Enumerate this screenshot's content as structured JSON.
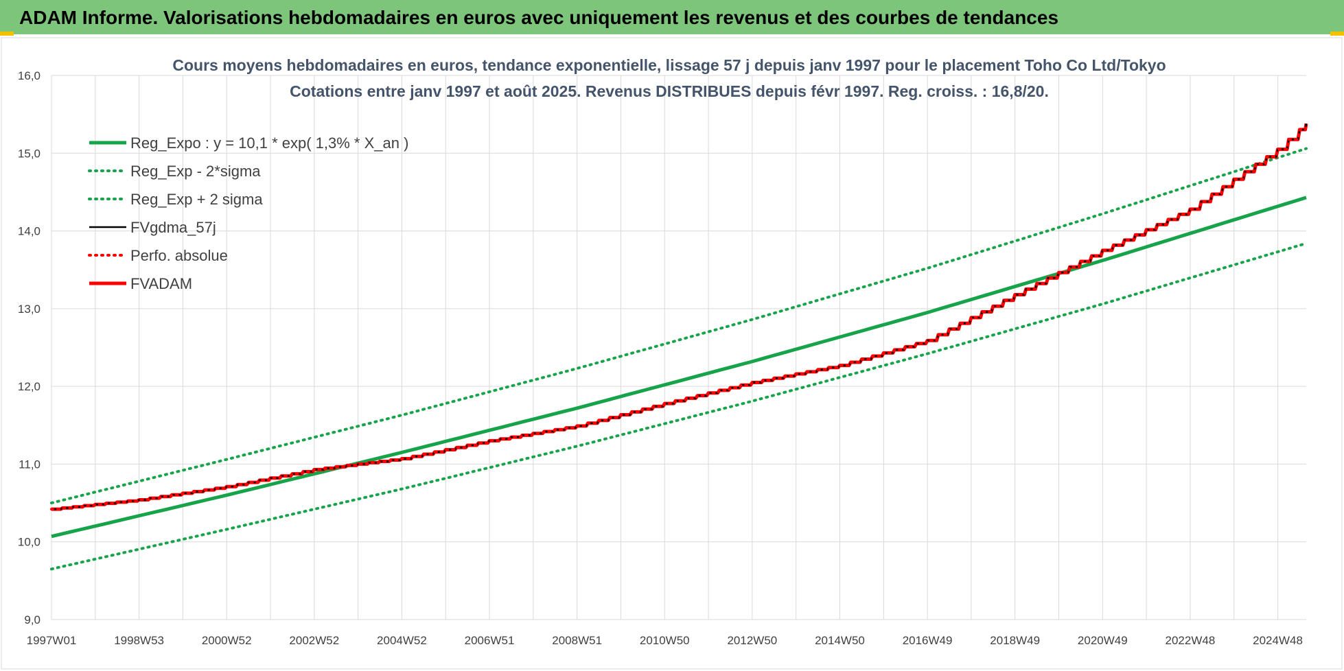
{
  "banner": {
    "title": "ADAM Informe. Valorisations hebdomadaires en euros avec uniquement les revenus et des courbes de tendances"
  },
  "colors": {
    "banner_bg": "#7dc57a",
    "banner_accent": "#f2c200",
    "trend_green": "#16a34a",
    "fv_black": "#000000",
    "fvadam_red": "#ff0000",
    "grid": "#d9d9d9",
    "tick_text": "#404040",
    "title_text": "#44546a"
  },
  "chart_data": {
    "type": "line",
    "title_line1": "Cours moyens hebdomadaires en euros, tendance exponentielle, lissage 57 j depuis janv 1997 pour le placement Toho Co Ltd/Tokyo",
    "title_line2": "Cotations entre janv 1997 et août 2025.  Revenus DISTRIBUES depuis févr 1997.  Reg. croiss. : 16,8/20.",
    "x_start": 1997.0,
    "x_end": 2025.65,
    "x_ticks": [
      {
        "label": "1997W01",
        "x": 1997.0
      },
      {
        "label": "1998W53",
        "x": 1999.0
      },
      {
        "label": "2000W52",
        "x": 2001.0
      },
      {
        "label": "2002W52",
        "x": 2003.0
      },
      {
        "label": "2004W52",
        "x": 2005.0
      },
      {
        "label": "2006W51",
        "x": 2007.0
      },
      {
        "label": "2008W51",
        "x": 2009.0
      },
      {
        "label": "2010W50",
        "x": 2011.0
      },
      {
        "label": "2012W50",
        "x": 2013.0
      },
      {
        "label": "2014W50",
        "x": 2015.0
      },
      {
        "label": "2016W49",
        "x": 2017.0
      },
      {
        "label": "2018W49",
        "x": 2019.0
      },
      {
        "label": "2020W49",
        "x": 2021.0
      },
      {
        "label": "2022W48",
        "x": 2023.0
      },
      {
        "label": "2024W48",
        "x": 2025.0
      }
    ],
    "ylim": [
      9.0,
      16.0
    ],
    "y_ticks": [
      "9,0",
      "10,0",
      "11,0",
      "12,0",
      "13,0",
      "14,0",
      "15,0",
      "16,0"
    ],
    "grid": true,
    "legend_position": "top-left",
    "series": [
      {
        "name": "Reg_Expo : y = 10,1 * exp( 1,3% *  X_an )",
        "style": "solid-thick",
        "color": "#16a34a",
        "x": [
          1997.0,
          2001.0,
          2005.0,
          2009.0,
          2013.0,
          2017.0,
          2021.0,
          2025.65
        ],
        "values": [
          10.07,
          10.6,
          11.15,
          11.72,
          12.32,
          12.95,
          13.62,
          14.43
        ]
      },
      {
        "name": "Reg_Exp - 2*sigma",
        "style": "dotted",
        "color": "#16a34a",
        "x": [
          1997.0,
          2001.0,
          2005.0,
          2009.0,
          2013.0,
          2017.0,
          2021.0,
          2025.65
        ],
        "values": [
          9.65,
          10.16,
          10.68,
          11.23,
          11.81,
          12.42,
          13.06,
          13.84
        ]
      },
      {
        "name": "Reg_Exp + 2 sigma",
        "style": "dotted",
        "color": "#16a34a",
        "x": [
          1997.0,
          2001.0,
          2005.0,
          2009.0,
          2013.0,
          2017.0,
          2021.0,
          2025.65
        ],
        "values": [
          10.5,
          11.06,
          11.63,
          12.23,
          12.86,
          13.52,
          14.22,
          15.06
        ]
      },
      {
        "name": "FVgdma_57j",
        "style": "solid",
        "color": "#000000",
        "x": [
          1997.0,
          1999.0,
          2001.0,
          2003.0,
          2005.0,
          2007.0,
          2009.0,
          2011.0,
          2013.0,
          2015.0,
          2017.0,
          2019.0,
          2021.0,
          2023.0,
          2025.0,
          2025.65
        ],
        "values": [
          10.42,
          10.54,
          10.71,
          10.93,
          11.07,
          11.3,
          11.49,
          11.78,
          12.05,
          12.27,
          12.59,
          13.18,
          13.75,
          14.28,
          15.05,
          15.38
        ]
      },
      {
        "name": "Perfo. absolue",
        "style": "dotted",
        "color": "#ff0000",
        "x": [
          1997.0,
          1999.0,
          2001.0,
          2003.0,
          2005.0,
          2007.0,
          2009.0,
          2011.0,
          2013.0,
          2015.0,
          2017.0,
          2019.0,
          2021.0,
          2023.0,
          2025.0,
          2025.65
        ],
        "values": [
          10.42,
          10.54,
          10.71,
          10.93,
          11.07,
          11.3,
          11.49,
          11.78,
          12.05,
          12.27,
          12.59,
          13.18,
          13.75,
          14.28,
          15.05,
          15.38
        ]
      },
      {
        "name": "FVADAM",
        "style": "solid-thick",
        "color": "#ff0000",
        "x": [
          1997.0,
          1999.0,
          2001.0,
          2003.0,
          2005.0,
          2007.0,
          2009.0,
          2011.0,
          2013.0,
          2015.0,
          2017.0,
          2019.0,
          2021.0,
          2023.0,
          2025.0,
          2025.65
        ],
        "values": [
          10.42,
          10.54,
          10.71,
          10.93,
          11.07,
          11.3,
          11.49,
          11.78,
          12.05,
          12.27,
          12.59,
          13.18,
          13.75,
          14.28,
          15.05,
          15.38
        ]
      }
    ]
  }
}
